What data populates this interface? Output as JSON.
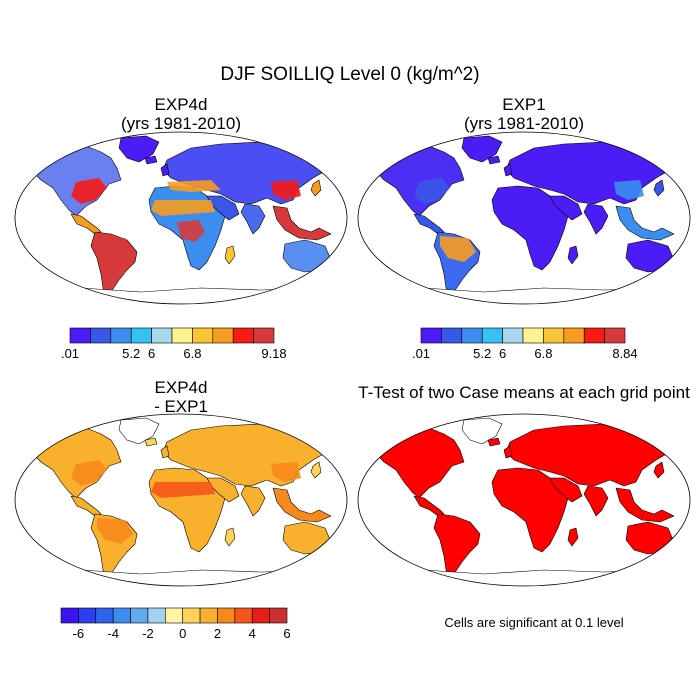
{
  "figure": {
    "title": "DJF SOILLIQ Level 0 (kg/m^2)"
  },
  "chart_data": [
    {
      "type": "heatmap",
      "id": "exp4d",
      "title_line1": "EXP4d",
      "title_line2": "(yrs 1981-2010)",
      "colorbar": {
        "colors": [
          "#4b1cf5",
          "#3a58e8",
          "#3b8ef0",
          "#37c0f2",
          "#a9d8ee",
          "#fff38f",
          "#f9c436",
          "#f79c1f",
          "#f71a16",
          "#d63a3a"
        ],
        "tick_labels": [
          ".01",
          "5.2",
          "6",
          "6.8",
          "9.18"
        ],
        "tick_index": [
          0,
          3,
          4,
          6,
          9
        ]
      },
      "regions": {
        "north_america": "#6a7ff0",
        "greenland": "#4b1cf5",
        "central_america": "#f79c1f",
        "south_america": "#d63a3a",
        "europe_asia": "#4b4ef2",
        "africa": "#3b8ef0",
        "australia": "#5a8ff2",
        "se_asia": "#d63a3a",
        "arabia": "#3a58e8",
        "india": "#4b6af0",
        "madagascar": "#f9c436",
        "japan": "#f79c1f",
        "uk": "#4b1cf5",
        "iceland": "#4b1cf5",
        "new_zealand": "#f9c436",
        "antarctica": "#ffffff"
      },
      "accents": {
        "conus_east": "#f71a16",
        "sahel": "#f79c1f",
        "congo": "#d63a3a",
        "med": "#f79c1f",
        "china_south": "#f71a16",
        "amazon": "#d63a3a"
      }
    },
    {
      "type": "heatmap",
      "id": "exp1",
      "title_line1": "EXP1",
      "title_line2": "(yrs 1981-2010)",
      "colorbar": {
        "colors": [
          "#4b1cf5",
          "#3a58e8",
          "#3b8ef0",
          "#37c0f2",
          "#a9d8ee",
          "#fff38f",
          "#f9c436",
          "#f79c1f",
          "#f71a16",
          "#d63a3a"
        ],
        "tick_labels": [
          ".01",
          "5.2",
          "6",
          "6.8",
          "8.84"
        ],
        "tick_index": [
          0,
          3,
          4,
          6,
          9
        ]
      },
      "regions": {
        "north_america": "#4b2ff2",
        "greenland": "#4b1cf5",
        "central_america": "#3a58e8",
        "south_america": "#3b6af0",
        "europe_asia": "#4b1cf5",
        "africa": "#4b1cf5",
        "australia": "#4b1cf5",
        "se_asia": "#3b8ef0",
        "arabia": "#4b1cf5",
        "india": "#4b1cf5",
        "madagascar": "#4b1cf5",
        "japan": "#3a58e8",
        "uk": "#4b1cf5",
        "iceland": "#4b1cf5",
        "new_zealand": "#3a58e8",
        "antarctica": "#ffffff"
      },
      "accents": {
        "amazon": "#f79c1f",
        "china_south": "#3b8ef0",
        "conus_east": "#3a58e8"
      }
    },
    {
      "type": "heatmap",
      "id": "diff",
      "title_line1": "EXP4d",
      "title_line2": "- EXP1",
      "colorbar": {
        "colors": [
          "#3d13f2",
          "#2b3ff0",
          "#2f62ee",
          "#3c8cf0",
          "#61aaee",
          "#a3d1ef",
          "#fff4a8",
          "#fdd35a",
          "#f9b12d",
          "#f7891c",
          "#f4551a",
          "#e61e16",
          "#cc2f2f"
        ],
        "tick_labels": [
          "-6",
          "-4",
          "-2",
          "0",
          "2",
          "4",
          "6"
        ],
        "tick_index": [
          0.5,
          2.5,
          4.5,
          6.5,
          8.5,
          10.5,
          12.5
        ]
      },
      "regions": {
        "north_america": "#f9b12d",
        "greenland": "#ffffff",
        "central_america": "#f9b12d",
        "south_america": "#f9b12d",
        "europe_asia": "#f9b12d",
        "africa": "#f9b12d",
        "australia": "#f9b12d",
        "se_asia": "#f7891c",
        "arabia": "#f9b12d",
        "india": "#f9b12d",
        "madagascar": "#fdd35a",
        "japan": "#fdd35a",
        "uk": "#f9b12d",
        "iceland": "#fdd35a",
        "new_zealand": "#fdd35a",
        "antarctica": "#ffffff"
      },
      "accents": {
        "sahel": "#f4551a",
        "china_south": "#f7891c",
        "conus_east": "#f7891c",
        "amazon": "#f7891c"
      }
    },
    {
      "type": "heatmap",
      "id": "ttest",
      "title_line1": "T-Test of two Case means at each grid point",
      "note": "Cells are significant at 0.1 level",
      "regions": {
        "north_america": "#ff0000",
        "greenland": "#ffffff",
        "central_america": "#ff0000",
        "south_america": "#ff0000",
        "europe_asia": "#ff0000",
        "africa": "#ff0000",
        "australia": "#ff0000",
        "se_asia": "#ff0000",
        "arabia": "#ff0000",
        "india": "#ff0000",
        "madagascar": "#ff0000",
        "japan": "#ff0000",
        "uk": "#ff0000",
        "iceland": "#ff0000",
        "new_zealand": "#ff0000",
        "antarctica": "#ffffff"
      },
      "accents": {}
    }
  ]
}
